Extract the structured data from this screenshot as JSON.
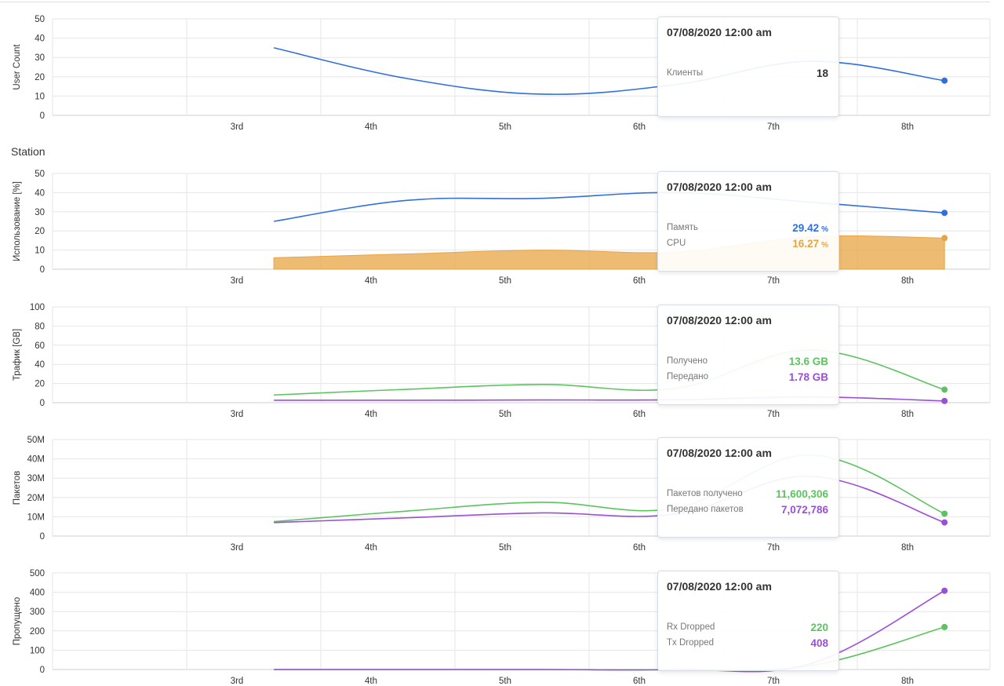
{
  "section_title": "Station",
  "chart_data": [
    {
      "type": "line",
      "ylabel": "User Count",
      "ylim": [
        0,
        50
      ],
      "yticks": [
        "0",
        "10",
        "20",
        "30",
        "40",
        "50"
      ],
      "x_categories": [
        "3rd",
        "4th",
        "5th",
        "6th",
        "7th",
        "8th"
      ],
      "grid": true,
      "series": [
        {
          "name": "Клиенты",
          "color": "#2f6fde",
          "area": false,
          "x": [
            2.65,
            3.65,
            4.65,
            5.65,
            6.65,
            7.65
          ],
          "y": [
            35,
            19,
            11,
            16,
            28,
            18
          ]
        }
      ],
      "tooltip": {
        "title": "07/08/2020 12:00 am",
        "rows": [
          {
            "label": "Клиенты",
            "value": "18",
            "unit": "",
            "color": "#333333"
          }
        ]
      }
    },
    {
      "type": "area",
      "ylabel": "Использование [%]",
      "ylim": [
        0,
        50
      ],
      "yticks": [
        "0",
        "10",
        "20",
        "30",
        "40",
        "50"
      ],
      "x_categories": [
        "3rd",
        "4th",
        "5th",
        "6th",
        "7th",
        "8th"
      ],
      "grid": true,
      "series": [
        {
          "name": "Память",
          "color": "#2f6fde",
          "area": false,
          "x": [
            2.65,
            3.65,
            4.65,
            5.65,
            6.65,
            7.65
          ],
          "y": [
            25,
            36,
            37,
            40,
            35,
            29.42
          ]
        },
        {
          "name": "CPU",
          "color": "#e8a443",
          "area": true,
          "x": [
            2.65,
            3.65,
            4.65,
            5.65,
            6.65,
            7.65
          ],
          "y": [
            6,
            8,
            10,
            9,
            17,
            16.27
          ]
        }
      ],
      "tooltip": {
        "title": "07/08/2020 12:00 am",
        "rows": [
          {
            "label": "Память",
            "value": "29.42",
            "unit": "%",
            "color": "#2f6fde"
          },
          {
            "label": "CPU",
            "value": "16.27",
            "unit": "%",
            "color": "#e8a443"
          }
        ]
      }
    },
    {
      "type": "line",
      "ylabel": "Трафик [GB]",
      "ylim": [
        0,
        100
      ],
      "yticks": [
        "0",
        "20",
        "40",
        "60",
        "80",
        "100"
      ],
      "x_categories": [
        "3rd",
        "4th",
        "5th",
        "6th",
        "7th",
        "8th"
      ],
      "grid": true,
      "series": [
        {
          "name": "Получено",
          "color": "#5cc45f",
          "area": false,
          "x": [
            2.65,
            3.65,
            4.65,
            5.65,
            6.65,
            7.65
          ],
          "y": [
            8,
            14,
            19,
            15,
            55,
            13.6
          ]
        },
        {
          "name": "Передано",
          "color": "#9b4fd8",
          "area": false,
          "x": [
            2.65,
            3.65,
            4.65,
            5.65,
            6.65,
            7.65
          ],
          "y": [
            2.5,
            2.5,
            2.8,
            3,
            6,
            1.78
          ]
        }
      ],
      "tooltip": {
        "title": "07/08/2020 12:00 am",
        "rows": [
          {
            "label": "Получено",
            "value": "13.6 GB",
            "unit": "",
            "color": "#5cc45f"
          },
          {
            "label": "Передано",
            "value": "1.78 GB",
            "unit": "",
            "color": "#9b4fd8"
          }
        ]
      }
    },
    {
      "type": "line",
      "ylabel": "Пакетов",
      "ylim": [
        0,
        50000000
      ],
      "yticks": [
        "0",
        "10M",
        "20M",
        "30M",
        "40M",
        "50M"
      ],
      "x_categories": [
        "3rd",
        "4th",
        "5th",
        "6th",
        "7th",
        "8th"
      ],
      "grid": true,
      "series": [
        {
          "name": "Пакетов получено",
          "color": "#5cc45f",
          "area": false,
          "x": [
            2.65,
            3.65,
            4.65,
            5.65,
            6.65,
            7.65
          ],
          "y": [
            7500000,
            13000000,
            17500000,
            14500000,
            42000000,
            11600306
          ]
        },
        {
          "name": "Передано пакетов",
          "color": "#9b4fd8",
          "area": false,
          "x": [
            2.65,
            3.65,
            4.65,
            5.65,
            6.65,
            7.65
          ],
          "y": [
            7000000,
            9500000,
            12000000,
            11500000,
            31000000,
            7072786
          ]
        }
      ],
      "tooltip": {
        "title": "07/08/2020 12:00 am",
        "rows": [
          {
            "label": "Пакетов получено",
            "value": "11,600,306",
            "unit": "",
            "color": "#5cc45f"
          },
          {
            "label": "Передано пакетов",
            "value": "7,072,786",
            "unit": "",
            "color": "#9b4fd8"
          }
        ]
      }
    },
    {
      "type": "line",
      "ylabel": "Пропущено",
      "ylim": [
        0,
        500
      ],
      "yticks": [
        "0",
        "100",
        "200",
        "300",
        "400",
        "500"
      ],
      "x_categories": [
        "3rd",
        "4th",
        "5th",
        "6th",
        "7th",
        "8th"
      ],
      "grid": true,
      "series": [
        {
          "name": "Rx Dropped",
          "color": "#5cc45f",
          "area": false,
          "x": [
            2.65,
            3.65,
            4.65,
            5.65,
            6.65,
            7.65
          ],
          "y": [
            0,
            0,
            0,
            0,
            20,
            220
          ]
        },
        {
          "name": "Tx Dropped",
          "color": "#9b4fd8",
          "area": false,
          "x": [
            2.65,
            3.65,
            4.65,
            5.65,
            6.65,
            7.65
          ],
          "y": [
            0,
            0,
            0,
            0,
            30,
            408
          ]
        }
      ],
      "tooltip": {
        "title": "07/08/2020 12:00 am",
        "rows": [
          {
            "label": "Rx Dropped",
            "value": "220",
            "unit": "",
            "color": "#5cc45f"
          },
          {
            "label": "Tx Dropped",
            "value": "408",
            "unit": "",
            "color": "#9b4fd8"
          }
        ]
      }
    }
  ]
}
